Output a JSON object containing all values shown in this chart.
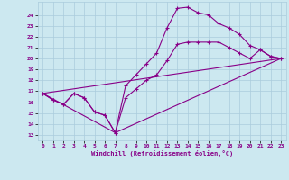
{
  "xlabel": "Windchill (Refroidissement éolien,°C)",
  "bg_color": "#cce8f0",
  "grid_color": "#aaccdd",
  "line_color": "#880088",
  "xlim": [
    -0.5,
    23.5
  ],
  "ylim": [
    12.5,
    25.2
  ],
  "xticks": [
    0,
    1,
    2,
    3,
    4,
    5,
    6,
    7,
    8,
    9,
    10,
    11,
    12,
    13,
    14,
    15,
    16,
    17,
    18,
    19,
    20,
    21,
    22,
    23
  ],
  "yticks": [
    13,
    14,
    15,
    16,
    17,
    18,
    19,
    20,
    21,
    22,
    23,
    24
  ],
  "line1_x": [
    0,
    1,
    2,
    3,
    4,
    5,
    6,
    7,
    8,
    9,
    10,
    11,
    12,
    13,
    14,
    15,
    16,
    17,
    18,
    19,
    20,
    21,
    22,
    23
  ],
  "line1_y": [
    16.8,
    16.2,
    15.8,
    16.8,
    16.4,
    15.1,
    14.8,
    13.2,
    16.4,
    17.2,
    18.0,
    18.5,
    19.8,
    21.3,
    21.5,
    21.5,
    21.5,
    21.5,
    21.0,
    20.5,
    20.0,
    20.8,
    20.2,
    20.0
  ],
  "line2_x": [
    0,
    1,
    2,
    3,
    4,
    5,
    6,
    7,
    8,
    9,
    10,
    11,
    12,
    13,
    14,
    15,
    16,
    17,
    18,
    19,
    20,
    21,
    22,
    23
  ],
  "line2_y": [
    16.8,
    16.2,
    15.8,
    16.8,
    16.4,
    15.1,
    14.8,
    13.2,
    17.5,
    18.5,
    19.5,
    20.5,
    22.8,
    24.6,
    24.7,
    24.2,
    24.0,
    23.2,
    22.8,
    22.2,
    21.2,
    20.8,
    20.2,
    20.0
  ],
  "line3_x": [
    0,
    23
  ],
  "line3_y": [
    16.8,
    20.0
  ],
  "line4_x": [
    0,
    7,
    23
  ],
  "line4_y": [
    16.8,
    13.2,
    20.0
  ]
}
